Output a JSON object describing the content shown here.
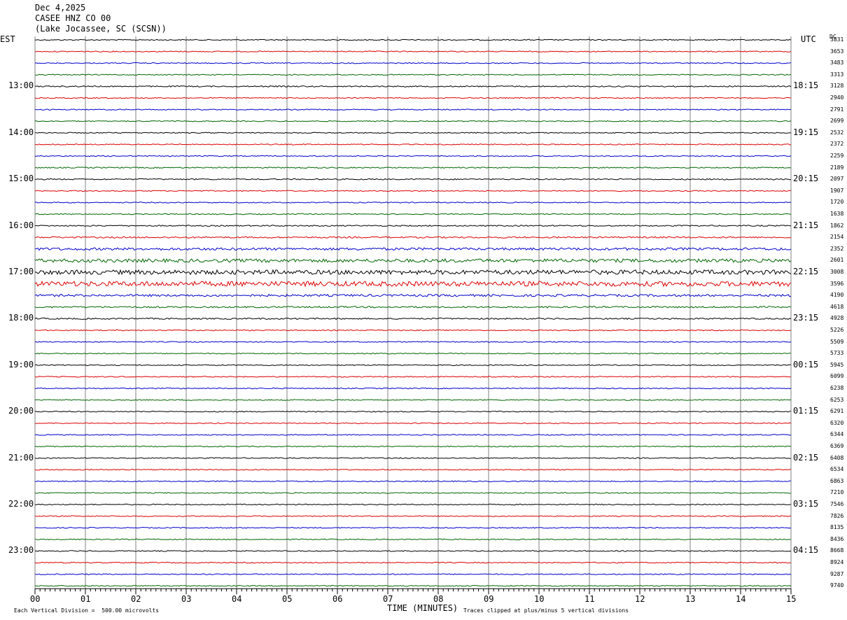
{
  "header": {
    "date": "Dec 4,2025",
    "station": "CASEE HNZ CO 00",
    "location": "(Lake Jocassee, SC (SCSN))"
  },
  "labels": {
    "left_timezone": "EST",
    "right_timezone": "UTC",
    "dc_label": "DC",
    "xlabel": "TIME (MINUTES)",
    "scale_note": "Each Vertical Division =  500.00 microvolts",
    "clip_note": "Traces clipped at plus/minus 5 vertical divisions"
  },
  "colors": {
    "trace_cycle": [
      "#000000",
      "#dd0000",
      "#0000cc",
      "#006600"
    ],
    "grid": "#808080"
  },
  "chart_data": {
    "type": "line",
    "title": "CASEE HNZ CO 00",
    "xlabel": "TIME (MINUTES)",
    "x_ticks": [
      "00",
      "01",
      "02",
      "03",
      "04",
      "05",
      "06",
      "07",
      "08",
      "09",
      "10",
      "11",
      "12",
      "13",
      "14",
      "15"
    ],
    "xlim": [
      0,
      15
    ],
    "left_time_labels": [
      "13:00",
      "14:00",
      "15:00",
      "16:00",
      "17:00",
      "18:00",
      "19:00",
      "20:00",
      "21:00",
      "22:00",
      "23:00"
    ],
    "right_time_labels": [
      "18:15",
      "19:15",
      "20:15",
      "21:15",
      "22:15",
      "23:15",
      "00:15",
      "01:15",
      "02:15",
      "03:15",
      "04:15"
    ],
    "trace_count": 48,
    "dc_offsets": [
      "3831",
      "3653",
      "3483",
      "3313",
      "3128",
      "2940",
      "2791",
      "2699",
      "2532",
      "2372",
      "2259",
      "2189",
      "2097",
      "1907",
      "1720",
      "1638",
      "1862",
      "2154",
      "2352",
      "2601",
      "3008",
      "3596",
      "4190",
      "4618",
      "4928",
      "5226",
      "5509",
      "5733",
      "5945",
      "6099",
      "6238",
      "6253",
      "6291",
      "6320",
      "6344",
      "6369",
      "6408",
      "6534",
      "6863",
      "7210",
      "7546",
      "7826",
      "8135",
      "8436",
      "8668",
      "8924",
      "9287",
      "9740"
    ],
    "noise_levels": [
      1.0,
      1.0,
      1.0,
      1.0,
      1.2,
      1.0,
      1.0,
      1.0,
      1.0,
      1.0,
      1.0,
      1.1,
      1.2,
      1.0,
      1.0,
      1.0,
      1.2,
      1.5,
      2.5,
      3.5,
      4.5,
      5.0,
      2.2,
      1.6,
      1.4,
      1.0,
      1.0,
      1.0,
      1.0,
      1.0,
      1.0,
      1.0,
      1.0,
      1.0,
      1.0,
      1.0,
      1.0,
      1.0,
      1.0,
      1.0,
      1.0,
      1.0,
      1.0,
      1.0,
      1.0,
      1.0,
      1.0,
      1.0
    ],
    "grid": true
  }
}
